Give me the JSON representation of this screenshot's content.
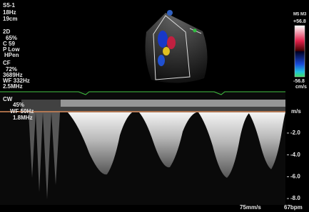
{
  "left_panel": {
    "probe": "S5-1",
    "frame_rate": "18Hz",
    "depth": "19cm",
    "mode_2d": {
      "label": "2D",
      "gain": "65%",
      "compression": "C 59",
      "power": "P Low",
      "harmonic": "HPen"
    },
    "color_flow": {
      "label": "CF",
      "gain": "72%",
      "prf": "3689Hz",
      "wall_filter": "WF 332Hz",
      "frequency": "2.5MHz"
    },
    "cw": {
      "label": "CW",
      "gain": "45%",
      "wall_filter": "WF 50Hz",
      "frequency": "1.8MHz"
    }
  },
  "color_bar": {
    "title": "M5 M3",
    "top": "+56.8",
    "bottom": "-56.8",
    "unit": "cm/s"
  },
  "doppler_scale": {
    "unit": "m/s",
    "ticks": [
      "-2.0",
      "-4.0",
      "-6.0",
      "-8.0"
    ]
  },
  "footer": {
    "sweep": "75mm/s",
    "heart_rate": "67bpm"
  }
}
